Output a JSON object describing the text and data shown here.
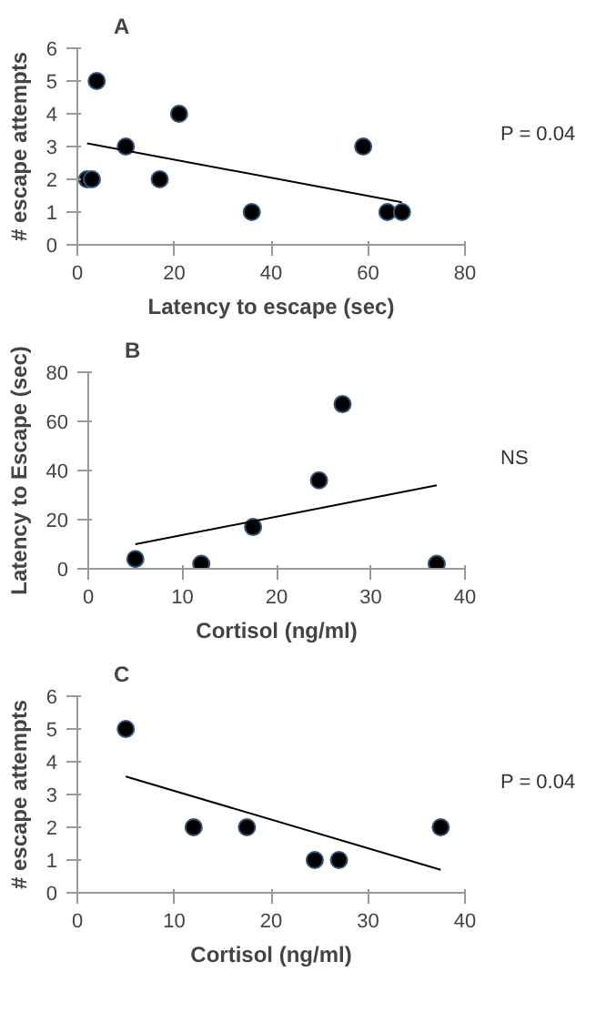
{
  "chart_data": [
    {
      "type": "scatter",
      "title": "A",
      "xlabel": "Latency to escape (sec)",
      "ylabel": "# escape attempts",
      "xlim": [
        0,
        80
      ],
      "ylim": [
        0,
        6
      ],
      "xticks": [
        0,
        20,
        40,
        60,
        80
      ],
      "yticks": [
        0,
        1,
        2,
        3,
        4,
        5,
        6
      ],
      "grid": false,
      "annotations": [
        "P = 0.04"
      ],
      "series": [
        {
          "marker": "circle",
          "color": "#000000",
          "x": [
            2,
            3,
            4,
            10,
            17,
            21,
            36,
            59,
            64,
            67
          ],
          "values": [
            2,
            2,
            5,
            3,
            2,
            4,
            1,
            3,
            1,
            1
          ]
        },
        {
          "type": "line",
          "color": "#000000",
          "x": [
            2,
            67
          ],
          "values": [
            3.1,
            1.3
          ]
        }
      ]
    },
    {
      "type": "scatter",
      "title": "B",
      "xlabel": "Cortisol (ng/ml)",
      "ylabel": "Latency to Escape (sec)",
      "xlim": [
        0,
        40
      ],
      "ylim": [
        0,
        80
      ],
      "xticks": [
        0,
        10,
        20,
        30,
        40
      ],
      "yticks": [
        0,
        20,
        40,
        60,
        80
      ],
      "grid": false,
      "annotations": [
        "NS"
      ],
      "series": [
        {
          "marker": "circle",
          "color": "#000000",
          "x": [
            5,
            12,
            17.5,
            24.5,
            27,
            37
          ],
          "values": [
            4,
            2,
            17,
            36,
            67,
            2
          ]
        },
        {
          "type": "line",
          "color": "#000000",
          "x": [
            5,
            37
          ],
          "values": [
            10,
            34
          ]
        }
      ]
    },
    {
      "type": "scatter",
      "title": "C",
      "xlabel": "Cortisol (ng/ml)",
      "ylabel": "# escape attempts",
      "xlim": [
        0,
        40
      ],
      "ylim": [
        0,
        6
      ],
      "xticks": [
        0,
        10,
        20,
        30,
        40
      ],
      "yticks": [
        0,
        1,
        2,
        3,
        4,
        5,
        6
      ],
      "grid": false,
      "annotations": [
        "P = 0.04"
      ],
      "series": [
        {
          "marker": "circle",
          "color": "#000000",
          "x": [
            5,
            12,
            17.5,
            24.5,
            27,
            37.5
          ],
          "values": [
            5,
            2,
            2,
            1,
            1,
            2
          ]
        },
        {
          "type": "line",
          "color": "#000000",
          "x": [
            5,
            37.5
          ],
          "values": [
            3.55,
            0.7
          ]
        }
      ]
    }
  ]
}
